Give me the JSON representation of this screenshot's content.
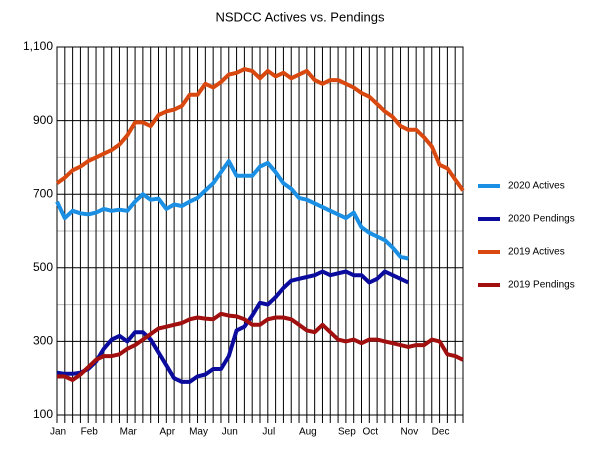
{
  "chart_data": {
    "type": "line",
    "title": "NSDCC Actives vs. Pendings",
    "categories": [
      "Jan",
      null,
      null,
      null,
      "Feb",
      null,
      null,
      null,
      null,
      "Mar",
      null,
      null,
      null,
      null,
      "Apr",
      null,
      null,
      null,
      "May",
      null,
      null,
      null,
      "Jun",
      null,
      null,
      null,
      null,
      "Jul",
      null,
      null,
      null,
      null,
      "Aug",
      null,
      null,
      null,
      null,
      "Sep",
      null,
      null,
      "Oct",
      null,
      null,
      null,
      null,
      "Nov",
      null,
      null,
      null,
      "Dec",
      null,
      null,
      null
    ],
    "series": [
      {
        "name": "2020 Actives",
        "color": "#1a8fe3",
        "values": [
          680,
          635,
          655,
          648,
          645,
          650,
          660,
          655,
          658,
          655,
          680,
          700,
          685,
          688,
          660,
          672,
          668,
          680,
          690,
          710,
          730,
          760,
          790,
          750,
          750,
          750,
          775,
          785,
          760,
          730,
          715,
          690,
          685,
          675,
          665,
          655,
          645,
          635,
          650,
          610,
          595,
          585,
          575,
          555,
          530,
          525,
          null,
          null,
          null,
          null,
          null,
          null,
          null
        ]
      },
      {
        "name": "2020 Pendings",
        "color": "#0b0b9e",
        "values": [
          215,
          212,
          212,
          215,
          225,
          245,
          280,
          305,
          315,
          300,
          325,
          325,
          305,
          270,
          235,
          200,
          190,
          190,
          205,
          210,
          225,
          225,
          260,
          330,
          340,
          370,
          405,
          400,
          420,
          445,
          465,
          470,
          475,
          480,
          490,
          480,
          485,
          490,
          480,
          480,
          460,
          470,
          490,
          480,
          470,
          460,
          null,
          null,
          null,
          null,
          null,
          null,
          null
        ]
      },
      {
        "name": "2019 Actives",
        "color": "#d9480f",
        "values": [
          730,
          745,
          765,
          775,
          790,
          800,
          810,
          820,
          835,
          860,
          895,
          895,
          885,
          915,
          925,
          930,
          940,
          970,
          970,
          1000,
          990,
          1005,
          1025,
          1030,
          1040,
          1035,
          1015,
          1035,
          1020,
          1030,
          1015,
          1025,
          1035,
          1010,
          1000,
          1010,
          1010,
          1000,
          990,
          975,
          965,
          945,
          925,
          910,
          885,
          875,
          875,
          855,
          830,
          780,
          770,
          740,
          710
        ]
      },
      {
        "name": "2019 Pendings",
        "color": "#a10f0f",
        "values": [
          205,
          205,
          195,
          210,
          230,
          250,
          260,
          260,
          265,
          280,
          290,
          305,
          320,
          335,
          340,
          345,
          350,
          360,
          365,
          362,
          360,
          375,
          370,
          368,
          360,
          345,
          345,
          360,
          365,
          365,
          360,
          345,
          330,
          325,
          345,
          325,
          305,
          300,
          305,
          295,
          305,
          305,
          300,
          295,
          290,
          285,
          290,
          290,
          305,
          300,
          265,
          260,
          250
        ]
      }
    ],
    "ylim": [
      100,
      1100
    ],
    "yticks": [
      100,
      300,
      500,
      700,
      900,
      {
        "value": 1100,
        "label": "1,100"
      }
    ],
    "minor_yticks": [
      200,
      400,
      600,
      800,
      1000
    ],
    "grid": true,
    "legend": "right"
  }
}
